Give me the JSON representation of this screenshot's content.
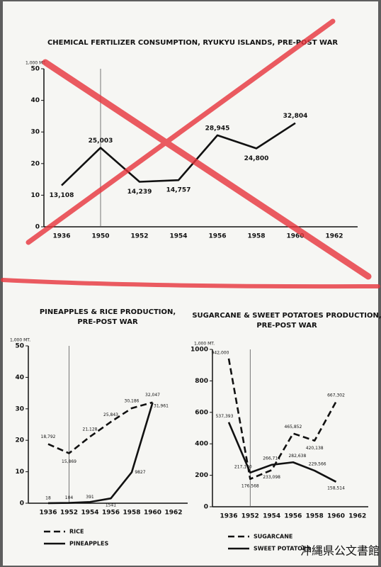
{
  "chart_data": [
    {
      "type": "line",
      "title": [
        "CHEMICAL FERTILIZER CONSUMPTION, RYUKYU ISLANDS, PRE-POST WAR"
      ],
      "y_label": "1,000 MT.",
      "categories": [
        "1936",
        "1950",
        "1952",
        "1954",
        "1956",
        "1958",
        "1960",
        "1962"
      ],
      "values": [
        13.108,
        25.003,
        14.239,
        14.757,
        28.945,
        24.8,
        32.804,
        null
      ],
      "value_labels": [
        "13,108",
        "25,003",
        "14,239",
        "14,757",
        "28,945",
        "24,800",
        "32,804",
        null
      ],
      "color": "#111111",
      "style": "solid",
      "ylim": [
        0,
        50
      ],
      "yticks": [
        0,
        10,
        20,
        30,
        40,
        50
      ]
    },
    {
      "type": "line",
      "title": [
        "PINEAPPLES & RICE PRODUCTION,",
        "PRE-POST WAR"
      ],
      "y_label": "1,000 MT.",
      "categories": [
        "1936",
        "1952",
        "1954",
        "1956",
        "1958",
        "1960",
        "1962"
      ],
      "series": [
        {
          "name": "RICE",
          "color": "#111111",
          "style": "dashed",
          "values": [
            18.792,
            15.869,
            21.128,
            25.843,
            30.186,
            32.047,
            null
          ],
          "value_labels": [
            "18,792",
            "15,869",
            "21,128",
            "25,843",
            "30,186",
            "32,047",
            null
          ]
        },
        {
          "name": "PINEAPPLES",
          "color": "#111111",
          "style": "solid",
          "values": [
            0.018,
            0.104,
            0.391,
            1.541,
            9.827,
            31.961,
            null
          ],
          "value_labels": [
            "18",
            "104",
            "391",
            "1541",
            "9827",
            "31,961",
            null
          ]
        }
      ],
      "ylim": [
        0,
        50
      ],
      "yticks": [
        0,
        10,
        20,
        30,
        40,
        50
      ]
    },
    {
      "type": "line",
      "title": [
        "SUGARCANE & SWEET POTATOES PRODUCTION,",
        "PRE-POST WAR"
      ],
      "y_label": "1,000 MT.",
      "categories": [
        "1936",
        "1952",
        "1954",
        "1956",
        "1958",
        "1960",
        "1962"
      ],
      "series": [
        {
          "name": "SUGARCANE",
          "color": "#111111",
          "style": "dashed",
          "values": [
            942.0,
            176.568,
            233.098,
            465.852,
            420.138,
            667.302,
            null
          ],
          "value_labels": [
            "942,000",
            "176,568",
            "233,098",
            "465,852",
            "420,138",
            "667,302",
            null
          ]
        },
        {
          "name": "SWEET POTATOES",
          "color": "#111111",
          "style": "solid",
          "values": [
            537.393,
            217.16,
            266.714,
            282.638,
            229.566,
            158.514,
            null
          ],
          "value_labels": [
            "537,393",
            "217,160",
            "266,714",
            "282,638",
            "229,566",
            "158,514",
            null
          ]
        }
      ],
      "ylim": [
        0,
        1000
      ],
      "yticks": [
        0,
        200,
        400,
        600,
        800,
        1000
      ]
    }
  ],
  "stamp": "沖縄県公文書館"
}
